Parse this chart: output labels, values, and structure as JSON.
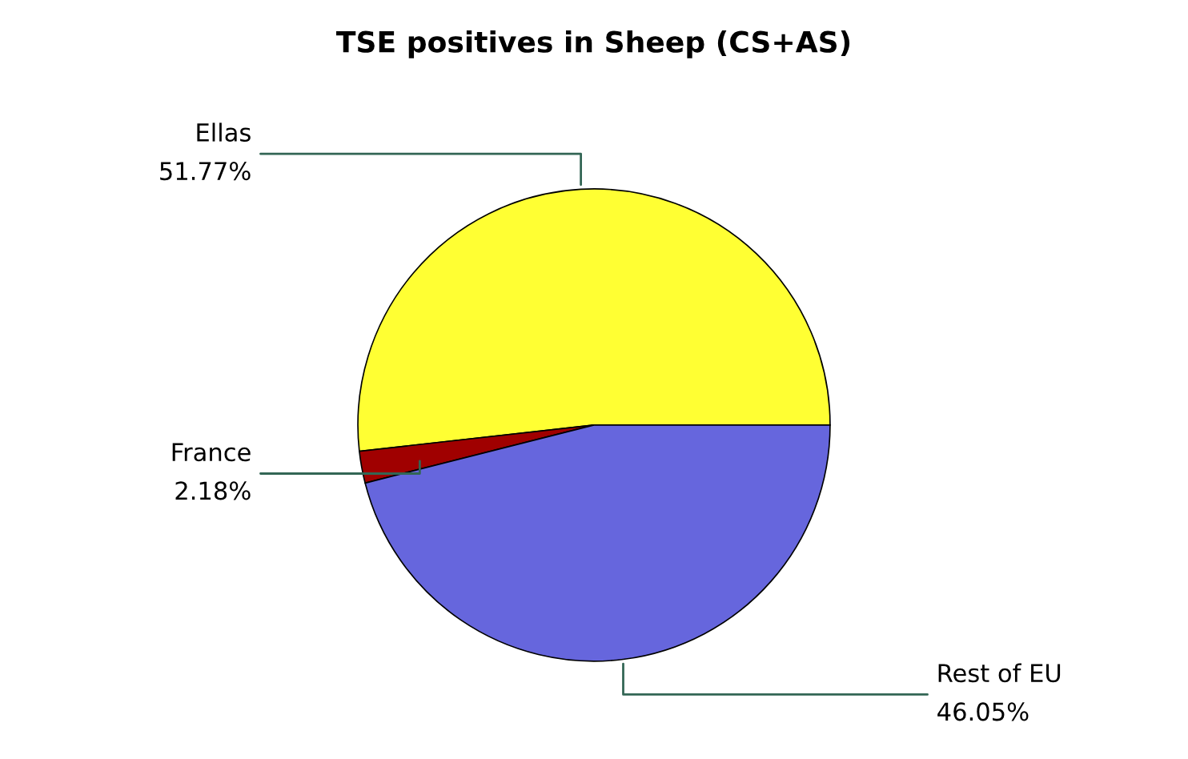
{
  "chart_data": {
    "type": "pie",
    "title": "TSE positives in Sheep (CS+AS)",
    "categories": [
      "Ellas",
      "France",
      "Rest of EU"
    ],
    "values": [
      51.77,
      2.18,
      46.05
    ],
    "value_labels": [
      "51.77%",
      "2.18%",
      "46.05%"
    ],
    "colors": [
      "#ffff33",
      "#a00000",
      "#6666dd"
    ]
  }
}
